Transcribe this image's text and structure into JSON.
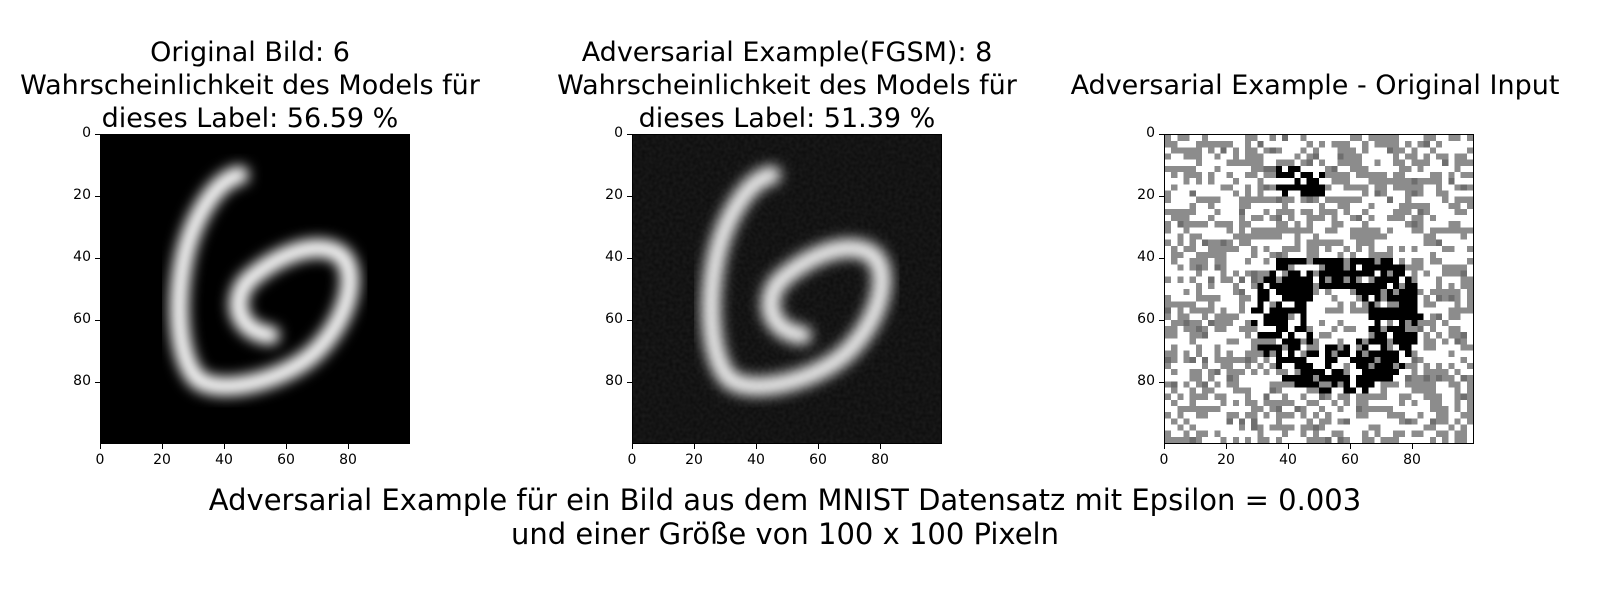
{
  "panels": [
    {
      "title": "Original Bild: 6\nWahrscheinlichkeit des Models für\ndieses Label:    56.59 %",
      "kind": "original"
    },
    {
      "title": "Adversarial Example(FGSM): 8\nWahrscheinlichkeit des Models für\ndieses Label:    51.39 %",
      "kind": "adversarial"
    },
    {
      "title": "Adversarial Example - Original Input",
      "kind": "difference"
    }
  ],
  "axes": {
    "yticks": [
      "0",
      "20",
      "40",
      "60",
      "80"
    ],
    "xticks": [
      "0",
      "20",
      "40",
      "60",
      "80"
    ]
  },
  "caption": "Adversarial Example für ein Bild aus dem MNIST Datensatz mit Epsilon = 0.003\nund einer Größe von 100 x 100 Pixeln",
  "colors": {
    "background": "#ffffff",
    "image_bg": "#000000",
    "stroke": "#ffffff",
    "diff_gray": "#8c8c8c"
  }
}
